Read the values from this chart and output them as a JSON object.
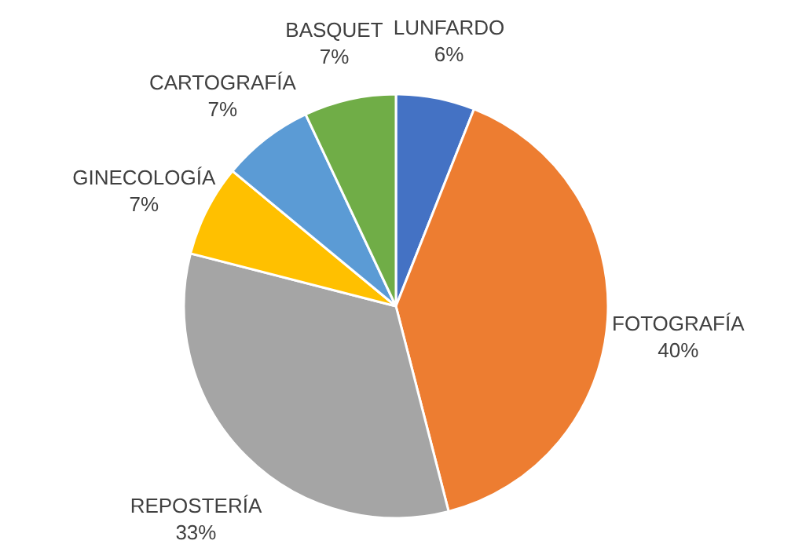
{
  "chart_data": {
    "type": "pie",
    "categories": [
      "LUNFARDO",
      "FOTOGRAFÍA",
      "REPOSTERÍA",
      "GINECOLOGÍA",
      "CARTOGRAFÍA",
      "BASQUET"
    ],
    "values": [
      6,
      40,
      33,
      7,
      7,
      7
    ],
    "value_labels": [
      "6%",
      "40%",
      "33%",
      "7%",
      "7%",
      "7%"
    ],
    "colors": [
      "#4472c4",
      "#ed7d31",
      "#a5a5a5",
      "#ffc000",
      "#5b9bd5",
      "#70ad47"
    ]
  }
}
